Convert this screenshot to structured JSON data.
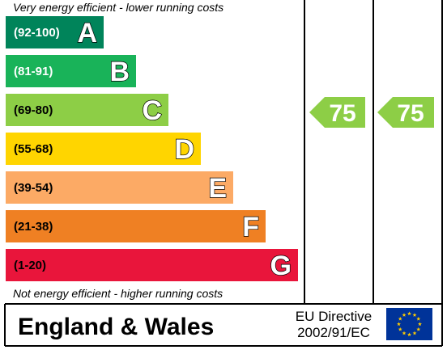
{
  "chart_data": {
    "type": "bar",
    "top_caption": "Very energy efficient - lower running costs",
    "bottom_caption": "Not energy efficient - higher running costs",
    "bands": [
      {
        "range": "(92-100)",
        "letter": "A",
        "color": "#00845a",
        "range_color": "#ffffff"
      },
      {
        "range": "(81-91)",
        "letter": "B",
        "color": "#19b359",
        "range_color": "#ffffff"
      },
      {
        "range": "(69-80)",
        "letter": "C",
        "color": "#8dce46",
        "range_color": "#000000"
      },
      {
        "range": "(55-68)",
        "letter": "D",
        "color": "#ffd500",
        "range_color": "#000000"
      },
      {
        "range": "(39-54)",
        "letter": "E",
        "color": "#fcaa65",
        "range_color": "#000000"
      },
      {
        "range": "(21-38)",
        "letter": "F",
        "color": "#ef8023",
        "range_color": "#000000"
      },
      {
        "range": "(1-20)",
        "letter": "G",
        "color": "#e9153b",
        "range_color": "#000000"
      }
    ],
    "current_rating": {
      "value": 75,
      "band": "C",
      "color": "#8dce46"
    },
    "potential_rating": {
      "value": 75,
      "band": "C",
      "color": "#8dce46"
    }
  },
  "footer": {
    "region": "England & Wales",
    "directive_line1": "EU Directive",
    "directive_line2": "2002/91/EC",
    "flag_color": "#003399",
    "star_color": "#ffcc00"
  }
}
